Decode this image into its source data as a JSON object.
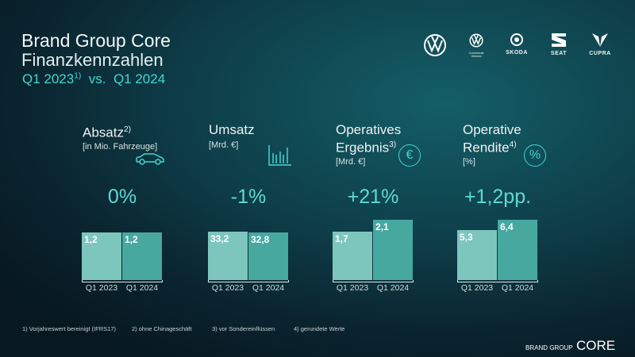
{
  "header": {
    "title": "Brand Group Core",
    "subtitle": "Finanzkennzahlen",
    "period_a": "Q1 2023",
    "period_a_note": "1)",
    "vs": "vs.",
    "period_b": "Q1 2024"
  },
  "logos": [
    "VW",
    "Commercial Vehicles",
    "SKODA",
    "SEAT",
    "CUPRA"
  ],
  "colors": {
    "accent": "#3fd6d0",
    "bar_2023": "#7dc6bd",
    "bar_2024": "#47a8a0"
  },
  "chart_data": [
    {
      "type": "bar",
      "title": "Absatz",
      "note": "2)",
      "unit": "[in Mio. Fahrzeuge]",
      "icon": "car-icon",
      "change": "0%",
      "categories": [
        "Q1 2023",
        "Q1 2024"
      ],
      "values": [
        1.2,
        1.2
      ],
      "labels": [
        "1,2",
        "1,2"
      ],
      "ylim": [
        0,
        1.65
      ]
    },
    {
      "type": "bar",
      "title": "Umsatz",
      "note": "",
      "unit": "[Mrd. €]",
      "icon": "bar-chart-icon",
      "change": "-1%",
      "categories": [
        "Q1 2023",
        "Q1 2024"
      ],
      "values": [
        33.2,
        32.8
      ],
      "labels": [
        "33,2",
        "32,8"
      ],
      "ylim": [
        0,
        45
      ]
    },
    {
      "type": "bar",
      "title": "Operatives Ergebnis",
      "note": "3)",
      "unit": "[Mrd. €]",
      "icon": "euro-icon",
      "change": "+21%",
      "categories": [
        "Q1 2023",
        "Q1 2024"
      ],
      "values": [
        1.7,
        2.1
      ],
      "labels": [
        "1,7",
        "2,1"
      ],
      "ylim": [
        0,
        2.3
      ]
    },
    {
      "type": "bar",
      "title": "Operative Rendite",
      "note": "4)",
      "unit": "[%]",
      "icon": "percent-icon",
      "change": "+1,2pp.",
      "categories": [
        "Q1 2023",
        "Q1 2024"
      ],
      "values": [
        5.3,
        6.4
      ],
      "labels": [
        "5,3",
        "6,4"
      ],
      "ylim": [
        0,
        7
      ]
    }
  ],
  "footnotes": [
    "1) Vorjahreswert bereinigt (IFRS17)",
    "2) ohne Chinageschäft",
    "3) vor Sondereinflüssen",
    "4) gerundete Werte"
  ],
  "brand": {
    "small": "BRAND GROUP",
    "large": "CORE"
  }
}
